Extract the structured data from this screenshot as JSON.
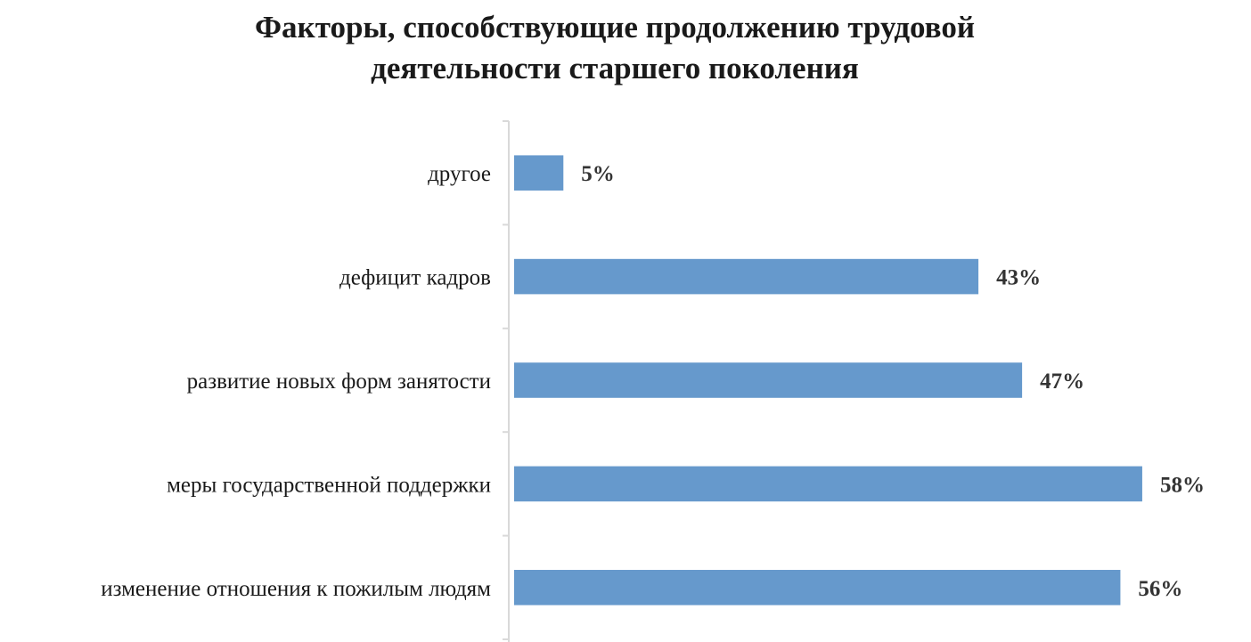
{
  "chart_data": {
    "type": "bar",
    "orientation": "horizontal",
    "title_lines": [
      "Факторы, способствующие продолжению трудовой",
      "деятельности старшего поколения"
    ],
    "categories": [
      "другое",
      "дефицит кадров",
      "развитие новых форм занятости",
      "меры государственной поддержки",
      "изменение отношения к пожилым людям"
    ],
    "values": [
      5,
      43,
      47,
      58,
      56
    ],
    "data_labels": [
      "5%",
      "43%",
      "47%",
      "58%",
      "56%"
    ],
    "xlim": [
      0,
      66
    ],
    "grid": false,
    "legend": "none",
    "bar_color": "#6699cc",
    "axis_color": "#d9d9d9"
  }
}
